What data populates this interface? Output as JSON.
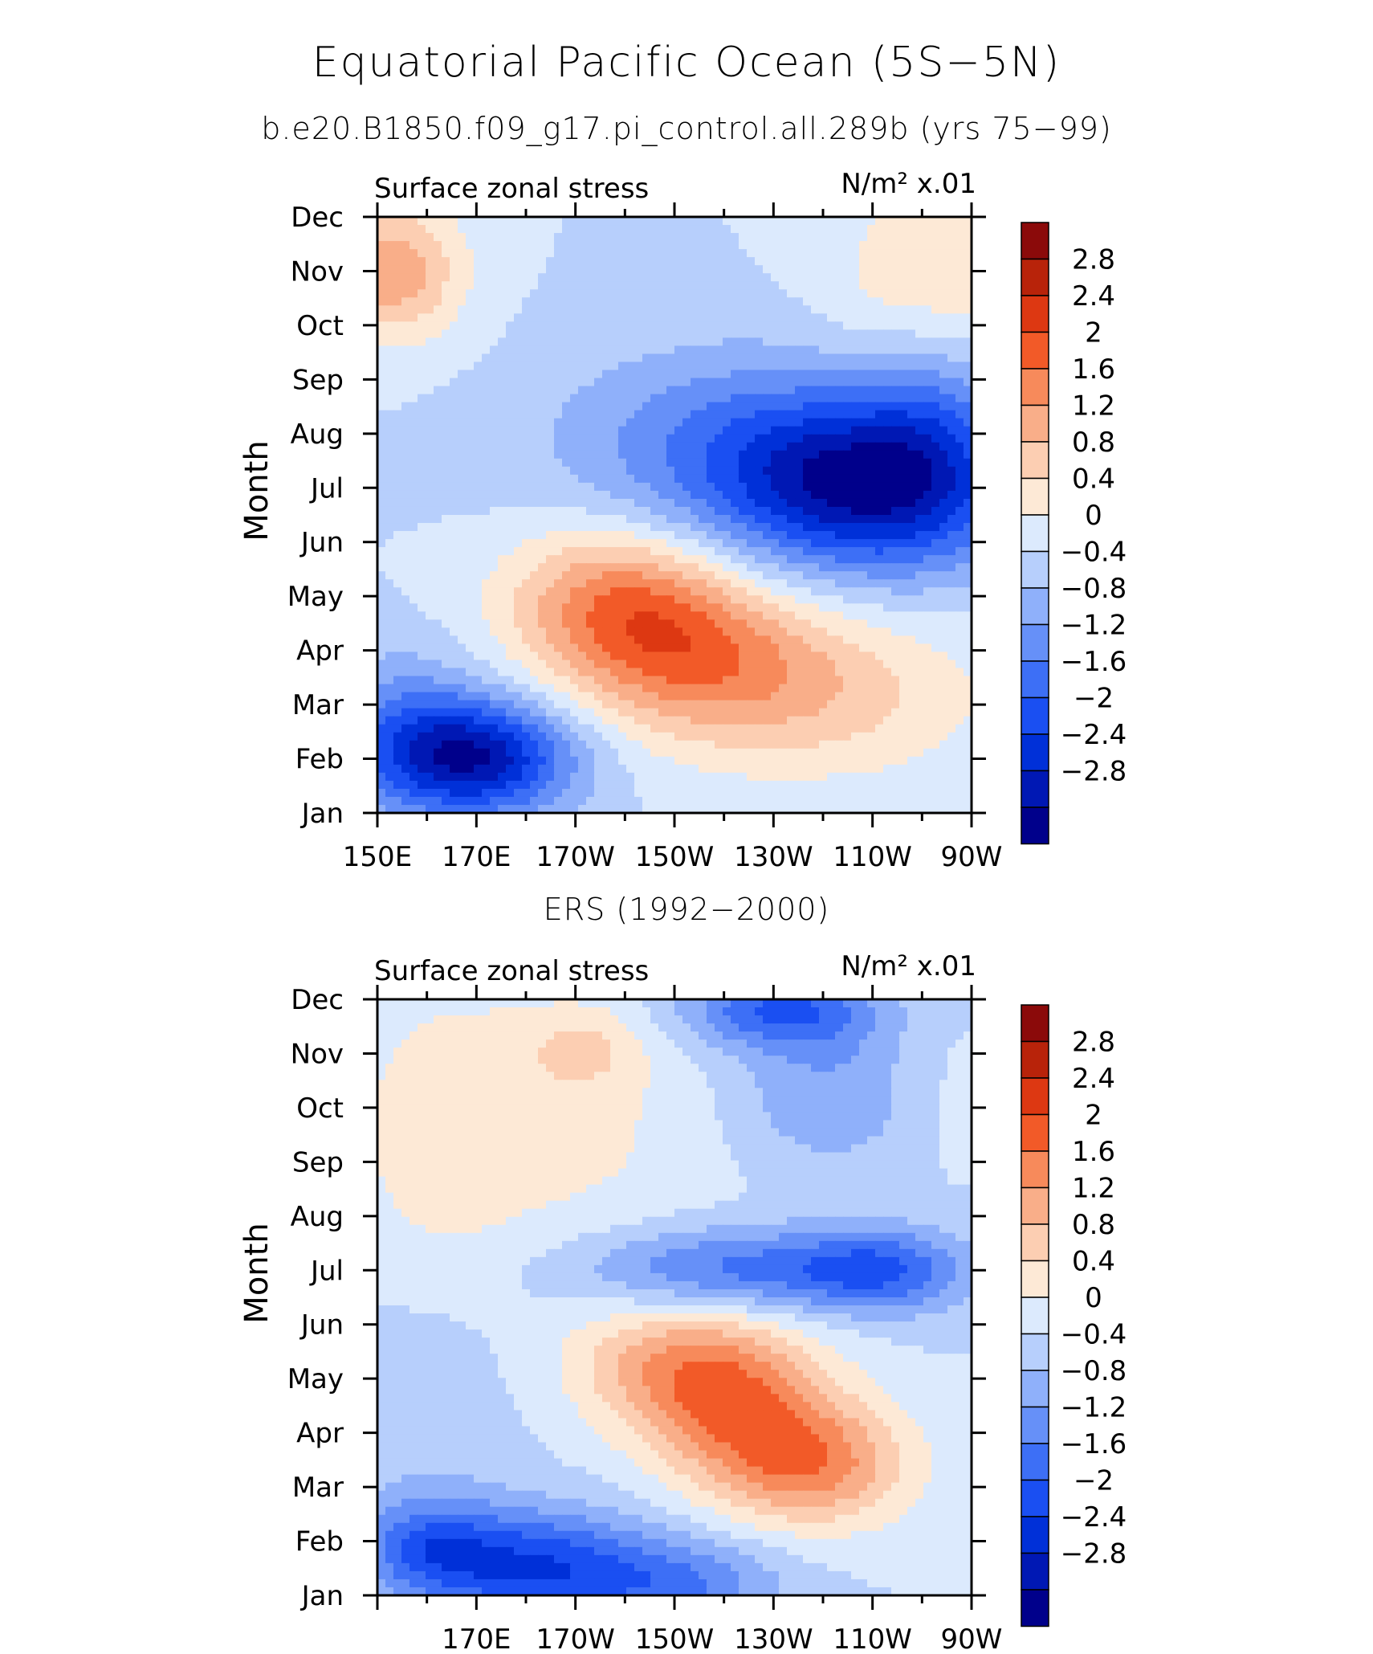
{
  "header": {
    "title": "Equatorial Pacific Ocean (5S−5N)",
    "subtitle": "b.e20.B1850.f09_g17.pi_control.all.289b (yrs 75−99)",
    "ers_title": "ERS (1992−2000)"
  },
  "colors": {
    "levels": [
      "#00008b",
      "#0018b4",
      "#0030d8",
      "#1a4ff2",
      "#3d6ff6",
      "#6690f8",
      "#8fb0fa",
      "#b7cffc",
      "#dceafd",
      "#fde9d6",
      "#fcceb2",
      "#f9ae89",
      "#f78a5b",
      "#f25a28",
      "#dd3812",
      "#b8230a",
      "#8b0a0a"
    ],
    "frame": "#000000"
  },
  "colorbar": {
    "labels": [
      "2.8",
      "2.4",
      "2",
      "1.6",
      "1.2",
      "0.8",
      "0.4",
      "0",
      "−0.4",
      "−0.8",
      "−1.2",
      "−1.6",
      "−2",
      "−2.4",
      "−2.8"
    ]
  },
  "chart_data": [
    {
      "type": "heatmap",
      "panel_label_left": "Surface zonal stress",
      "panel_label_right": "N/m² x.01",
      "ylabel": "Month",
      "x_tick_labels": [
        "150E",
        "170E",
        "170W",
        "150W",
        "130W",
        "110W",
        "90W"
      ],
      "y_tick_labels": [
        "Jan",
        "Feb",
        "Mar",
        "Apr",
        "May",
        "Jun",
        "Jul",
        "Aug",
        "Sep",
        "Oct",
        "Nov",
        "Dec"
      ],
      "xlim_deg_east": [
        150,
        270
      ],
      "levels": [
        -2.8,
        -2.4,
        -2.0,
        -1.6,
        -1.2,
        -0.8,
        -0.4,
        0,
        0.4,
        0.8,
        1.2,
        1.6,
        2.0,
        2.4,
        2.8
      ],
      "features": [
        {
          "lon": 170,
          "month": 2,
          "amp": -2.6,
          "slon": 14,
          "smon": 0.75
        },
        {
          "lon": 155,
          "month": 2.6,
          "amp": -0.9,
          "slon": 12,
          "smon": 1.0
        },
        {
          "lon": 250,
          "month": 7,
          "amp": -2.4,
          "slon": 20,
          "smon": 1.1
        },
        {
          "lon": 223,
          "month": 7.7,
          "amp": -1.2,
          "slon": 26,
          "smon": 1.3
        },
        {
          "lon": 198,
          "month": 5,
          "amp": 1.5,
          "slon": 16,
          "smon": 1.0
        },
        {
          "lon": 212,
          "month": 4,
          "amp": 1.4,
          "slon": 18,
          "smon": 1.0
        },
        {
          "lon": 238,
          "month": 3.2,
          "amp": 1.0,
          "slon": 24,
          "smon": 1.1
        },
        {
          "lon": 153,
          "month": 11,
          "amp": 1.5,
          "slon": 10,
          "smon": 0.9
        },
        {
          "lon": 262,
          "month": 10.8,
          "amp": 0.9,
          "slon": 14,
          "smon": 1.2
        },
        {
          "lon": 262,
          "month": 8.5,
          "amp": -0.7,
          "slon": 10,
          "smon": 1.5
        }
      ]
    },
    {
      "type": "heatmap",
      "panel_label_left": "Surface zonal stress",
      "panel_label_right": "N/m² x.01",
      "ylabel": "Month",
      "x_tick_labels": [
        "170E",
        "170W",
        "150W",
        "130W",
        "110W",
        "90W"
      ],
      "y_tick_labels": [
        "Jan",
        "Feb",
        "Mar",
        "Apr",
        "May",
        "Jun",
        "Jul",
        "Aug",
        "Sep",
        "Oct",
        "Nov",
        "Dec"
      ],
      "xlim_deg_east": [
        150,
        270
      ],
      "levels": [
        -2.8,
        -2.4,
        -2.0,
        -1.6,
        -1.2,
        -0.8,
        -0.4,
        0,
        0.4,
        0.8,
        1.2,
        1.6,
        2.0,
        2.4,
        2.8
      ],
      "features": [
        {
          "lon": 182,
          "month": 1.5,
          "amp": -1.9,
          "slon": 16,
          "smon": 0.75
        },
        {
          "lon": 160,
          "month": 1.9,
          "amp": -1.2,
          "slon": 10,
          "smon": 0.6
        },
        {
          "lon": 212,
          "month": 1.2,
          "amp": -1.1,
          "slon": 14,
          "smon": 0.6
        },
        {
          "lon": 222,
          "month": 4.6,
          "amp": 1.7,
          "slon": 14,
          "smon": 1.0
        },
        {
          "lon": 238,
          "month": 3.4,
          "amp": 1.7,
          "slon": 14,
          "smon": 0.8
        },
        {
          "lon": 207,
          "month": 5.3,
          "amp": 1.0,
          "slon": 14,
          "smon": 0.8
        },
        {
          "lon": 222,
          "month": 7,
          "amp": -1.4,
          "slon": 22,
          "smon": 0.55
        },
        {
          "lon": 252,
          "month": 7,
          "amp": -1.3,
          "slon": 12,
          "smon": 0.55
        },
        {
          "lon": 231,
          "month": 11.8,
          "amp": -1.6,
          "slon": 14,
          "smon": 0.5
        },
        {
          "lon": 241,
          "month": 10.3,
          "amp": -0.8,
          "slon": 14,
          "smon": 1.0
        },
        {
          "lon": 180,
          "month": 9.8,
          "amp": 0.6,
          "slon": 26,
          "smon": 1.8
        },
        {
          "lon": 192,
          "month": 11.1,
          "amp": 0.6,
          "slon": 8,
          "smon": 0.5
        },
        {
          "lon": 163,
          "month": 9,
          "amp": 0.3,
          "slon": 10,
          "smon": 2.0
        },
        {
          "lon": 264,
          "month": 10.3,
          "amp": 0.2,
          "slon": 8,
          "smon": 1.0
        },
        {
          "lon": 160,
          "month": 4,
          "amp": -0.3,
          "slon": 12,
          "smon": 2.0
        }
      ]
    }
  ]
}
